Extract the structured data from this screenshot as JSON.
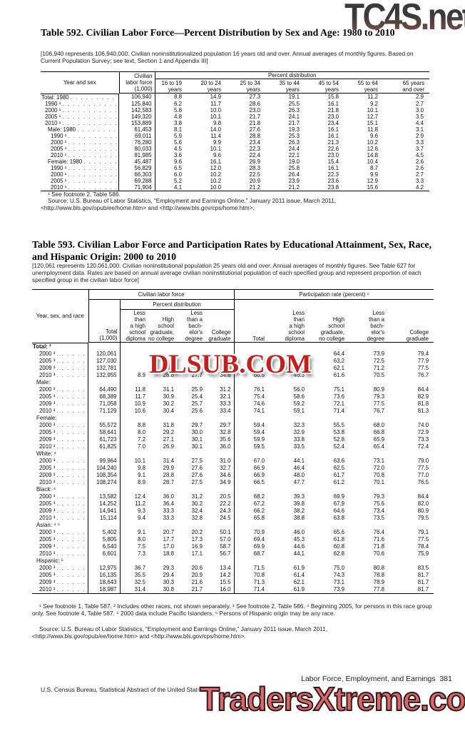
{
  "watermarks": {
    "top": "TC4S.net",
    "middle": "DLSUB.COM",
    "bottom": "TradersXtreme.com"
  },
  "table592": {
    "title": "Table 592. Civilian Labor Force—Percent Distribution by Sex and Age: 1980 to 2010",
    "note": "[106,940 represents 106,940,000. Civilian noninstitutionalized population 16 years old and over. Annual averages of monthly figures. Based on Current Population Survey; see text, Section 1 and Appendix III]",
    "head": {
      "label": "Year and sex",
      "clf": "Civilian\nlabor force\n(1,000)",
      "pd": "Percent distribution",
      "ages": [
        "16 to 19\nyears",
        "20 to 24\nyears",
        "25 to 34\nyears",
        "35 to 44\nyears",
        "45 to 54\nyears",
        "55 to 64\nyears",
        "65 years\nand over"
      ]
    },
    "rows": [
      {
        "label": "Total: 1980",
        "indent": 0,
        "v": [
          "106,940",
          "8.8",
          "14.9",
          "27.3",
          "19.1",
          "15.8",
          "11.2",
          "2.9"
        ]
      },
      {
        "label": "1990 ¹",
        "indent": 1,
        "v": [
          "125,840",
          "6.2",
          "11.7",
          "28.6",
          "25.5",
          "16.1",
          "9.2",
          "2.7"
        ]
      },
      {
        "label": "2000 ¹",
        "indent": 1,
        "v": [
          "142,583",
          "5.8",
          "10.0",
          "23.0",
          "26.3",
          "21.8",
          "10.1",
          "3.0"
        ]
      },
      {
        "label": "2005 ¹",
        "indent": 1,
        "v": [
          "149,320",
          "4.8",
          "10.1",
          "21.7",
          "24.1",
          "23.0",
          "12.7",
          "3.5"
        ]
      },
      {
        "label": "2010 ¹",
        "indent": 1,
        "v": [
          "153,889",
          "3.8",
          "9.8",
          "21.8",
          "21.7",
          "23.4",
          "15.1",
          "4.4"
        ]
      },
      {
        "label": "Male: 1980",
        "indent": 2,
        "v": [
          "61,453",
          "8.1",
          "14.0",
          "27.6",
          "19.3",
          "16.1",
          "11.8",
          "3.1"
        ]
      },
      {
        "label": "1990 ¹",
        "indent": 3,
        "v": [
          "69,011",
          "5.9",
          "11.4",
          "28.8",
          "25.3",
          "16.1",
          "9.6",
          "2.9"
        ]
      },
      {
        "label": "2000 ¹",
        "indent": 3,
        "v": [
          "76,280",
          "5.6",
          "9.9",
          "23.4",
          "26.3",
          "21.3",
          "10.2",
          "3.3"
        ]
      },
      {
        "label": "2005 ¹",
        "indent": 3,
        "v": [
          "80,033",
          "4.5",
          "10.1",
          "22.3",
          "24.4",
          "22.6",
          "12.6",
          "3.7"
        ]
      },
      {
        "label": "2010 ¹",
        "indent": 3,
        "v": [
          "81,985",
          "3.6",
          "9.6",
          "22.4",
          "22.1",
          "23.0",
          "14.8",
          "4.5"
        ]
      },
      {
        "label": "Female: 1980",
        "indent": 2,
        "v": [
          "45,487",
          "9.6",
          "16.1",
          "26.9",
          "19.0",
          "15.4",
          "10.4",
          "2.6"
        ]
      },
      {
        "label": "1990 ¹",
        "indent": 3,
        "v": [
          "56,829",
          "6.5",
          "12.0",
          "28.3",
          "25.8",
          "16.1",
          "8.7",
          "2.6"
        ]
      },
      {
        "label": "2000 ¹",
        "indent": 3,
        "v": [
          "66,303",
          "6.0",
          "10.2",
          "22.5",
          "26.4",
          "22.3",
          "9.9",
          "2.7"
        ]
      },
      {
        "label": "2005 ¹",
        "indent": 3,
        "v": [
          "69,288",
          "5.2",
          "10.2",
          "20.9",
          "23.9",
          "23.6",
          "12.9",
          "3.3"
        ]
      },
      {
        "label": "2010 ¹",
        "indent": 3,
        "v": [
          "71,904",
          "4.1",
          "10.0",
          "21.2",
          "21.2",
          "23.8",
          "15.6",
          "4.2"
        ]
      }
    ],
    "footnote": "¹ See footnote 2, Table 586.",
    "source": "Source: U.S. Bureau of Labor Statistics, “Employment and Earnings Online,” January 2011 issue, March 2011, <http://www.bls.gov/opub/ee/home.htm> and <http://www.bls.gov/cps/home.htm>."
  },
  "table593": {
    "title": "Table 593. Civilian Labor Force and Participation Rates by Educational Attainment, Sex, Race, and Hispanic Origin: 2000 to 2010",
    "note": "[120,061 represents 120,061,000. Civilian noninstitutional population 25 years old and over. Annual averages of monthly figures. See Table 627 for unemployment data. Rates are based on annual average civilian noninstitutional population of each specified group and represent proportion of each specified group in the civilian labor force]",
    "head": {
      "label": "Year, sex, and race",
      "clf_group": "Civilian labor force",
      "part_group": "Participation rate (percent) ¹",
      "pd": "Percent distribution",
      "total1000": "Total\n(1,000)",
      "total": "Total",
      "edu": [
        "Less\nthan\na high\nschool\ndiploma",
        "High\nschool\ngraduate,\nno college",
        "Less\nthan a\nbach-\nelor's\ndegree",
        "College\ngraduate"
      ]
    },
    "rows": [
      {
        "label": "Total: ²",
        "indent": 0,
        "bold": true,
        "group": true
      },
      {
        "label": "2000 ³",
        "indent": 2,
        "v": [
          "120,061",
          "",
          "",
          "",
          "",
          "",
          "",
          "64.4",
          "73.9",
          "79.4"
        ]
      },
      {
        "label": "2005 ³",
        "indent": 2,
        "v": [
          "127,030",
          "",
          "",
          "",
          "",
          "",
          "",
          "63.2",
          "72.5",
          "77.9"
        ]
      },
      {
        "label": "2009 ³",
        "indent": 2,
        "v": [
          "132,781",
          "",
          "",
          "",
          "",
          "",
          "",
          "62.1",
          "71.2",
          "77.5"
        ]
      },
      {
        "label": "2010 ³",
        "indent": 2,
        "v": [
          "132,955",
          "8.9",
          "28.8",
          "27.7",
          "34.6",
          "66.5",
          "46.3",
          "61.6",
          "70.5",
          "76.7"
        ]
      },
      {
        "label": "Male:",
        "indent": 1,
        "group": true
      },
      {
        "label": "2000 ³",
        "indent": 2,
        "v": [
          "64,490",
          "11.8",
          "31.1",
          "25.9",
          "31.2",
          "76.1",
          "56.0",
          "75.1",
          "80.9",
          "84.4"
        ]
      },
      {
        "label": "2005 ³",
        "indent": 2,
        "v": [
          "68,389",
          "11.7",
          "30.9",
          "25.4",
          "32.1",
          "75.4",
          "58.6",
          "73.6",
          "79.3",
          "82.9"
        ]
      },
      {
        "label": "2009 ³",
        "indent": 2,
        "v": [
          "71,058",
          "10.9",
          "30.2",
          "25.7",
          "33.3",
          "74.6",
          "59.2",
          "72.1",
          "77.5",
          "81.8"
        ]
      },
      {
        "label": "2010 ³",
        "indent": 2,
        "v": [
          "71,129",
          "10.6",
          "30.4",
          "25.6",
          "33.4",
          "74.1",
          "59.1",
          "71.4",
          "76.7",
          "81.3"
        ]
      },
      {
        "label": "Female:",
        "indent": 1,
        "group": true
      },
      {
        "label": "2000 ³",
        "indent": 2,
        "v": [
          "55,572",
          "8.8",
          "31.8",
          "29.7",
          "29.7",
          "59.4",
          "32.3",
          "55.5",
          "68.0",
          "74.0"
        ]
      },
      {
        "label": "2005 ³",
        "indent": 2,
        "v": [
          "58,641",
          "8.0",
          "29.2",
          "30.0",
          "32.8",
          "59.4",
          "32.9",
          "53.8",
          "66.8",
          "72.9"
        ]
      },
      {
        "label": "2009 ³",
        "indent": 2,
        "v": [
          "61,723",
          "7.2",
          "27.1",
          "30.1",
          "35.6",
          "59.9",
          "33.8",
          "52.8",
          "65.9",
          "73.3"
        ]
      },
      {
        "label": "2010 ³",
        "indent": 2,
        "v": [
          "61,825",
          "7.0",
          "26.9",
          "30.1",
          "36.0",
          "59.5",
          "33.5",
          "52.4",
          "65.4",
          "72.4"
        ]
      },
      {
        "label": "White: ⁴",
        "indent": 1,
        "group": true
      },
      {
        "label": "2000 ³",
        "indent": 2,
        "v": [
          "99,964",
          "10.1",
          "31.4",
          "27.5",
          "31.0",
          "67.0",
          "44.1",
          "63.6",
          "73.1",
          "79.0"
        ]
      },
      {
        "label": "2005 ³",
        "indent": 2,
        "v": [
          "104,240",
          "9.8",
          "29.9",
          "27.6",
          "32.7",
          "66.9",
          "46.4",
          "62.5",
          "72.0",
          "77.5"
        ]
      },
      {
        "label": "2009 ³",
        "indent": 2,
        "v": [
          "108,354",
          "9.1",
          "28.8",
          "27.6",
          "34.6",
          "66.9",
          "48.0",
          "61.7",
          "70.8",
          "77.0"
        ]
      },
      {
        "label": "2010 ³",
        "indent": 2,
        "v": [
          "108,274",
          "8.9",
          "28.7",
          "27.5",
          "34.9",
          "66.5",
          "47.7",
          "61.2",
          "70.1",
          "76.5"
        ]
      },
      {
        "label": "Black: ⁴",
        "indent": 1,
        "group": true
      },
      {
        "label": "2000 ³",
        "indent": 2,
        "v": [
          "13,582",
          "12.4",
          "36.0",
          "31.2",
          "20.5",
          "68.2",
          "39.3",
          "69.9",
          "79.3",
          "84.4"
        ]
      },
      {
        "label": "2005 ³",
        "indent": 2,
        "v": [
          "14,252",
          "11.2",
          "36.4",
          "30.2",
          "22.2",
          "67.2",
          "39.8",
          "67.9",
          "75.6",
          "82.0"
        ]
      },
      {
        "label": "2009 ³",
        "indent": 2,
        "v": [
          "14,941",
          "9.3",
          "33.3",
          "32.4",
          "24.3",
          "66.2",
          "38.2",
          "64.6",
          "73.4",
          "80.9"
        ]
      },
      {
        "label": "2010 ³",
        "indent": 2,
        "v": [
          "15,114",
          "9.4",
          "33.3",
          "32.8",
          "24.5",
          "65.8",
          "38.8",
          "63.8",
          "73.5",
          "79.5"
        ]
      },
      {
        "label": "Asian: ⁴ ⁵",
        "indent": 1,
        "group": true
      },
      {
        "label": "2000 ³",
        "indent": 2,
        "v": [
          "5,402",
          "9.1",
          "20.7",
          "20.2",
          "50.1",
          "70.9",
          "46.0",
          "65.6",
          "76.4",
          "79.1"
        ]
      },
      {
        "label": "2005 ³",
        "indent": 2,
        "v": [
          "5,805",
          "8.0",
          "17.7",
          "17.3",
          "57.0",
          "69.4",
          "45.3",
          "61.8",
          "71.6",
          "77.5"
        ]
      },
      {
        "label": "2009 ³",
        "indent": 2,
        "v": [
          "6,540",
          "7.5",
          "17.0",
          "16.9",
          "58.7",
          "69.9",
          "44.6",
          "60.8",
          "71.8",
          "78.4"
        ]
      },
      {
        "label": "2010 ³",
        "indent": 2,
        "v": [
          "6,601",
          "7.3",
          "18.8",
          "17.1",
          "56.7",
          "68.7",
          "44.1",
          "62.8",
          "70.6",
          "75.9"
        ]
      },
      {
        "label": "Hispanic: ⁶",
        "indent": 1,
        "group": true
      },
      {
        "label": "2000 ³",
        "indent": 2,
        "v": [
          "12,975",
          "36.7",
          "29.3",
          "20.6",
          "13.4",
          "71.5",
          "61.9",
          "75.0",
          "80.8",
          "83.5"
        ]
      },
      {
        "label": "2005 ³",
        "indent": 2,
        "v": [
          "16,135",
          "35.5",
          "29.4",
          "20.9",
          "14.2",
          "70.8",
          "61.4",
          "74.3",
          "78.8",
          "81.7"
        ]
      },
      {
        "label": "2009 ³",
        "indent": 2,
        "v": [
          "18,643",
          "32.5",
          "30.3",
          "21.6",
          "15.5",
          "71.3",
          "62.1",
          "73.1",
          "78.9",
          "81.7"
        ]
      },
      {
        "label": "2010 ³",
        "indent": 2,
        "v": [
          "18,987",
          "31.4",
          "30.8",
          "21.7",
          "16.0",
          "71.4",
          "61.9",
          "73.9",
          "77.8",
          "81.7"
        ]
      }
    ],
    "footnotes": "¹ See footnote 1, Table 587. ² Includes other races, not shown separately. ³ See footnote 2, Table 586. ⁴ Beginning 2005, for persons in this race group only. See footnote 4, Table 587. ⁵ 2000 data include Pacific Islanders. ⁶ Persons of Hispanic origin may be any race.",
    "source": "Source: U.S. Bureau of Labor Statistics, “Employment and Earnings Online,” January 2011 issue, March 2011, <http://www.bls.gov/opub/ee/home.htm> and <http://www.bls.gov/cps/home.htm>."
  },
  "footer": {
    "chapter": "Labor Force, Employment, and Earnings",
    "page": "381",
    "bureau": "U.S. Census Bureau, Statistical Abstract of the United States: 2012"
  }
}
